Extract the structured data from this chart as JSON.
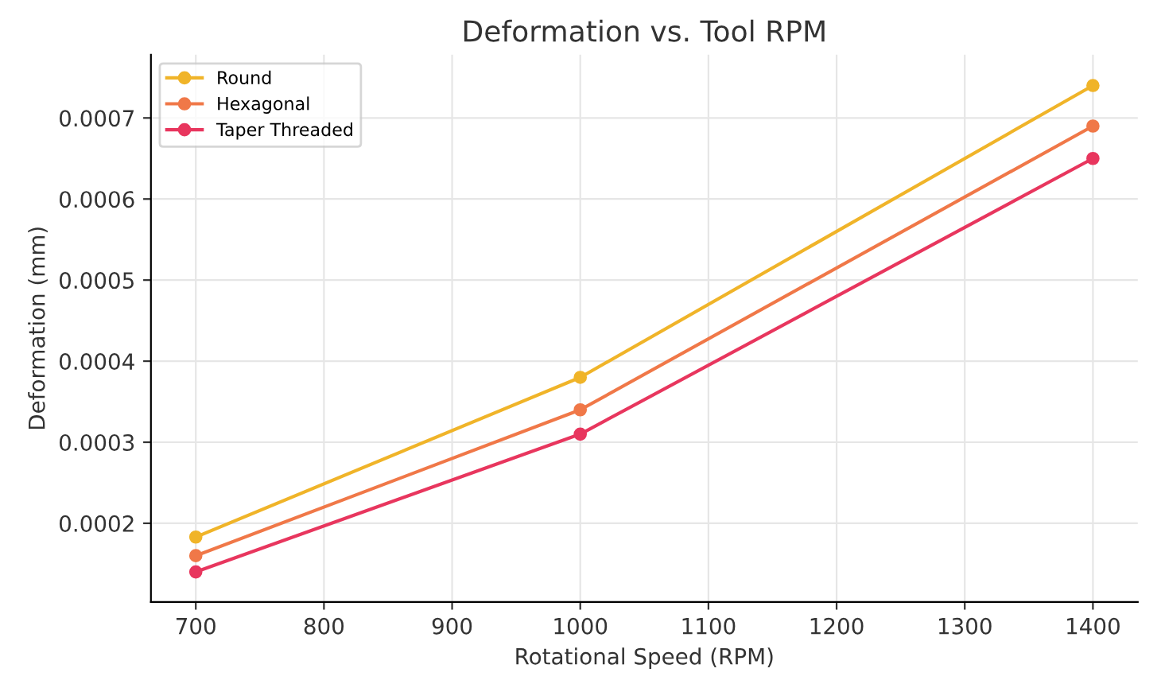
{
  "chart_data": {
    "type": "line",
    "title": "Deformation vs. Tool RPM",
    "xlabel": "Rotational Speed (RPM)",
    "ylabel": "Deformation (mm)",
    "x": [
      700,
      1000,
      1400
    ],
    "series": [
      {
        "name": "Round",
        "color": "#f0b429",
        "values": [
          0.000183,
          0.00038,
          0.00074
        ]
      },
      {
        "name": "Hexagonal",
        "color": "#f07848",
        "values": [
          0.00016,
          0.00034,
          0.00069
        ]
      },
      {
        "name": "Taper Threaded",
        "color": "#e8365e",
        "values": [
          0.00014,
          0.00031,
          0.00065
        ]
      }
    ],
    "xlim": [
      665,
      1435
    ],
    "ylim": [
      0.000103,
      0.000778
    ],
    "xticks": [
      700,
      800,
      900,
      1000,
      1100,
      1200,
      1300,
      1400
    ],
    "yticks": [
      0.0002,
      0.0003,
      0.0004,
      0.0005,
      0.0006,
      0.0007
    ],
    "grid": true,
    "legend": "top left",
    "marker": "circle",
    "line_style": "solid"
  }
}
